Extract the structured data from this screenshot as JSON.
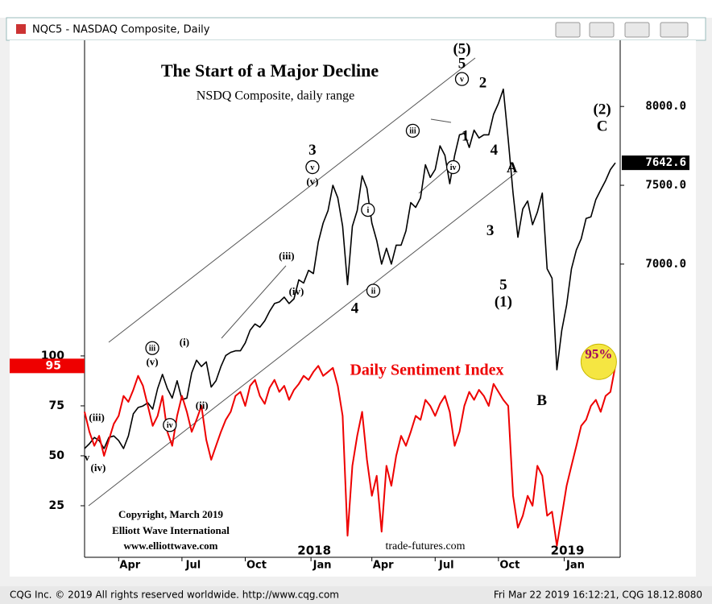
{
  "window": {
    "title": "NQC5 - NASDAQ Composite, Daily",
    "status_left": "CQG Inc. © 2019 All rights reserved worldwide.  http://www.cqg.com",
    "status_right": "Fri Mar 22 2019 16:12:21, CQG 18.12.8080"
  },
  "chart_data": {
    "type": "line",
    "title": "The Start of a Major Decline",
    "subtitle": "NSDQ Composite, daily range",
    "sentiment_label": "Daily Sentiment Index",
    "copyright": [
      "Copyright, March 2019",
      "Elliott Wave International",
      "www.elliottwave.com"
    ],
    "source": "trade-futures.com",
    "years": [
      {
        "value": 47.5,
        "label": "2018"
      },
      {
        "value": 99.5,
        "label": "2019"
      }
    ],
    "xlim": [
      0,
      110
    ],
    "xticks": [
      {
        "value": 7,
        "label": "Apr"
      },
      {
        "value": 20,
        "label": "Jul"
      },
      {
        "value": 33,
        "label": "Oct"
      },
      {
        "value": 46.5,
        "label": "Jan"
      },
      {
        "value": 59,
        "label": "Apr"
      },
      {
        "value": 72,
        "label": "Jul"
      },
      {
        "value": 85,
        "label": "Oct"
      },
      {
        "value": 98.5,
        "label": "Jan"
      }
    ],
    "ylim": [
      5150,
      8420
    ],
    "yticks": [
      {
        "value": 7000,
        "label": "7000.0"
      },
      {
        "value": 7500,
        "label": "7500.0"
      },
      {
        "value": 8000,
        "label": "8000.0"
      }
    ],
    "y2lim": [
      0,
      258
    ],
    "y2ticks": [
      25,
      50,
      75,
      100
    ],
    "series": [
      {
        "name": "NQC5",
        "color": "#000000",
        "values": [
          5830,
          5860,
          5900,
          5880,
          5830,
          5900,
          5910,
          5880,
          5830,
          5910,
          6050,
          6090,
          6100,
          6120,
          6080,
          6210,
          6300,
          6210,
          6150,
          6260,
          6140,
          6150,
          6310,
          6390,
          6350,
          6380,
          6220,
          6260,
          6350,
          6420,
          6440,
          6450,
          6450,
          6500,
          6580,
          6620,
          6600,
          6640,
          6700,
          6750,
          6760,
          6790,
          6750,
          6780,
          6900,
          6880,
          6960,
          6940,
          7140,
          7260,
          7340,
          7500,
          7420,
          7240,
          6870,
          7240,
          7340,
          7560,
          7480,
          7260,
          7150,
          7000,
          7100,
          7000,
          7120,
          7120,
          7210,
          7390,
          7360,
          7420,
          7630,
          7550,
          7600,
          7750,
          7690,
          7510,
          7690,
          7820,
          7830,
          7740,
          7850,
          7800,
          7820,
          7820,
          7950,
          8020,
          8110,
          7790,
          7450,
          7170,
          7350,
          7400,
          7250,
          7330,
          7450,
          6970,
          6910,
          6330,
          6580,
          6740,
          6970,
          7090,
          7160,
          7290,
          7300,
          7410,
          7470,
          7530,
          7600,
          7642.6
        ]
      },
      {
        "name": "Daily Sentiment Index",
        "color": "#ee0000",
        "axis": "y2",
        "values": [
          72,
          62,
          55,
          60,
          50,
          58,
          66,
          70,
          80,
          77,
          83,
          90,
          85,
          75,
          65,
          70,
          80,
          62,
          55,
          70,
          80,
          72,
          62,
          68,
          75,
          58,
          48,
          55,
          62,
          68,
          72,
          80,
          82,
          75,
          85,
          88,
          80,
          76,
          84,
          88,
          82,
          85,
          78,
          83,
          86,
          90,
          88,
          92,
          95,
          90,
          92,
          94,
          85,
          70,
          10,
          45,
          60,
          72,
          48,
          30,
          40,
          12,
          45,
          35,
          50,
          60,
          55,
          62,
          70,
          68,
          78,
          75,
          70,
          76,
          80,
          72,
          55,
          62,
          75,
          82,
          78,
          83,
          80,
          75,
          86,
          82,
          78,
          75,
          30,
          14,
          20,
          30,
          25,
          45,
          40,
          20,
          22,
          5,
          20,
          35,
          45,
          55,
          65,
          68,
          75,
          78,
          72,
          80,
          82,
          95
        ]
      }
    ],
    "annotations": [
      {
        "text": "(iii)",
        "x": 2.5,
        "y": 6026
      },
      {
        "text": "v",
        "x": 0.5,
        "y": 5774
      },
      {
        "text": "(iv)",
        "x": 2.8,
        "y": 5708
      },
      {
        "text": "iii",
        "x": 13.9,
        "y": 6467,
        "circled": true
      },
      {
        "text": "(v)",
        "x": 13.9,
        "y": 6379
      },
      {
        "text": "(i)",
        "x": 20.5,
        "y": 6503
      },
      {
        "text": "iv",
        "x": 17.5,
        "y": 5979,
        "circled": true
      },
      {
        "text": "(ii)",
        "x": 24.1,
        "y": 6103
      },
      {
        "text": "(iii)",
        "x": 41.5,
        "y": 7051
      },
      {
        "text": "(iv)",
        "x": 43.5,
        "y": 6826
      },
      {
        "text": "3",
        "x": 46.8,
        "y": 7723,
        "big": true
      },
      {
        "text": "v",
        "x": 46.8,
        "y": 7615,
        "circled": true
      },
      {
        "text": "(v)",
        "x": 46.8,
        "y": 7523
      },
      {
        "text": "4",
        "x": 55.5,
        "y": 6718,
        "big": true
      },
      {
        "text": "i",
        "x": 58.2,
        "y": 7344,
        "circled": true
      },
      {
        "text": "ii",
        "x": 59.3,
        "y": 6831,
        "circled": true
      },
      {
        "text": "iii",
        "x": 67.4,
        "y": 7846,
        "circled": true
      },
      {
        "text": "iv",
        "x": 75.7,
        "y": 7615,
        "circled": true
      },
      {
        "text": "1",
        "x": 78.2,
        "y": 7810,
        "big": true
      },
      {
        "text": "(5)",
        "x": 77.5,
        "y": 8364,
        "big": true
      },
      {
        "text": "5",
        "x": 77.5,
        "y": 8272,
        "big": true
      },
      {
        "text": "v",
        "x": 77.5,
        "y": 8174,
        "circled": true
      },
      {
        "text": "2",
        "x": 81.8,
        "y": 8149,
        "big": true
      },
      {
        "text": "4",
        "x": 84.1,
        "y": 7723,
        "big": true
      },
      {
        "text": "A",
        "x": 87.8,
        "y": 7610,
        "big": true
      },
      {
        "text": "3",
        "x": 83.3,
        "y": 7210,
        "big": true
      },
      {
        "text": "5",
        "x": 86,
        "y": 6867,
        "big": true
      },
      {
        "text": "(1)",
        "x": 86,
        "y": 6759,
        "big": true
      },
      {
        "text": "B",
        "x": 93.9,
        "y": 6133,
        "big": true
      },
      {
        "text": "(2)",
        "x": 106.3,
        "y": 7979,
        "big": true
      },
      {
        "text": "C",
        "x": 106.3,
        "y": 7872,
        "big": true
      }
    ],
    "highlight": {
      "text": "95%",
      "x": 105.6,
      "y": 6421
    }
  }
}
